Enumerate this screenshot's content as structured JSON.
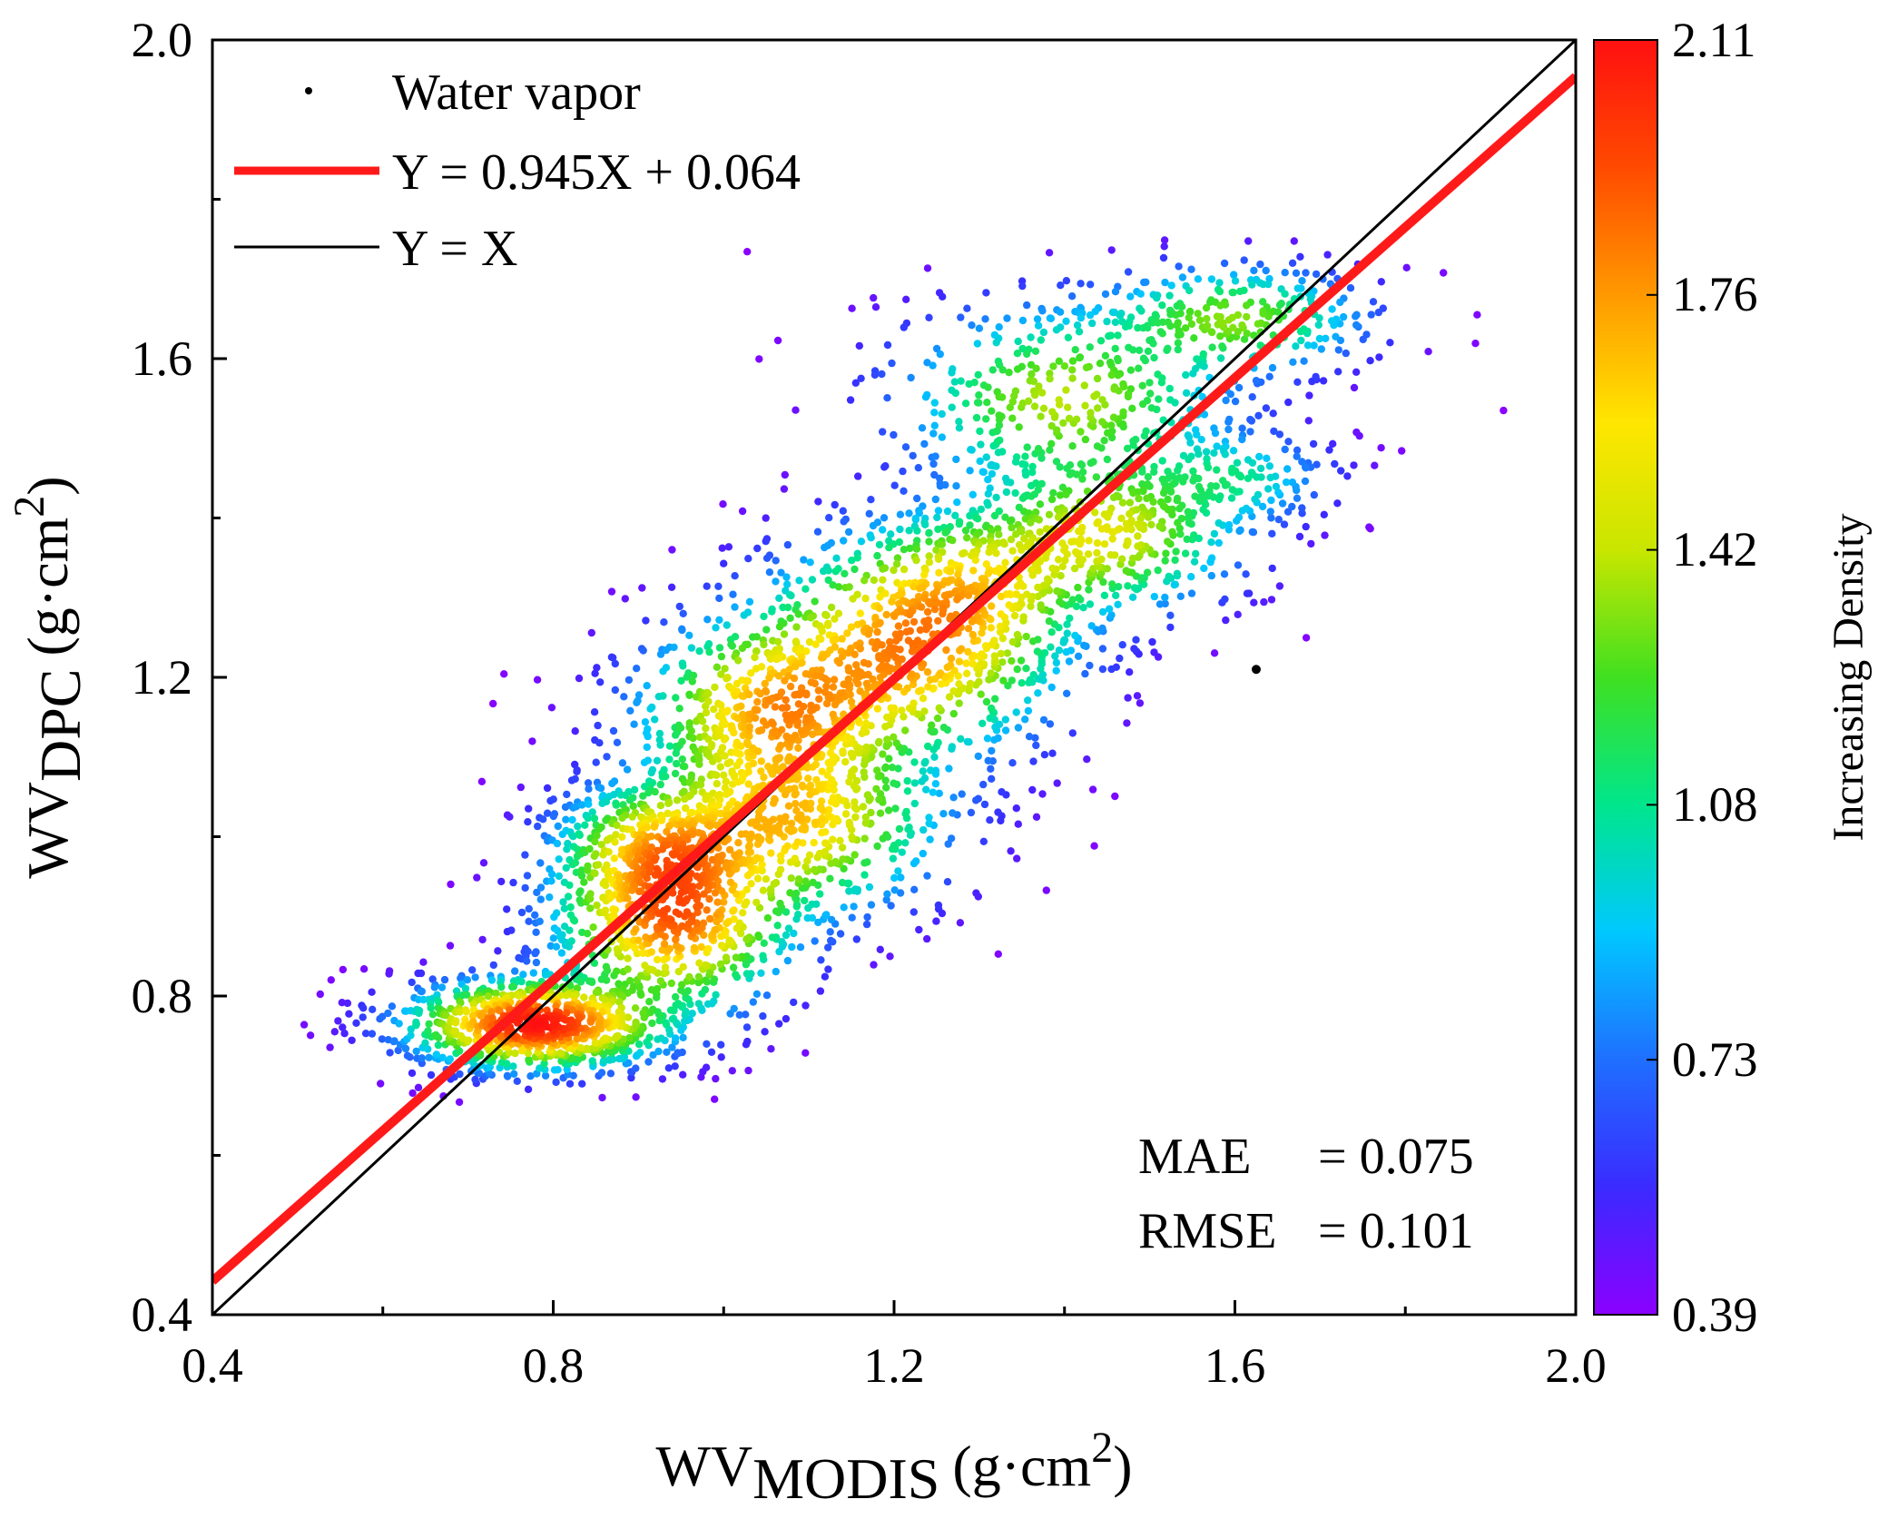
{
  "chart_data": {
    "type": "scatter",
    "title": "",
    "xlabel": {
      "main": "WV",
      "sub": "MODIS",
      "unit": "(g·cm",
      "sup": "2",
      "close": ")"
    },
    "ylabel": {
      "main": "WV",
      "sub": "DPC",
      "unit": "(g·cm",
      "sup": "2",
      "close": ")"
    },
    "xlim": [
      0.4,
      2.0
    ],
    "ylim": [
      0.4,
      2.0
    ],
    "xticks": [
      "0.4",
      "0.8",
      "1.2",
      "1.6",
      "2.0"
    ],
    "yticks": [
      "0.4",
      "0.8",
      "1.2",
      "1.6",
      "2.0"
    ],
    "legend": {
      "position": "top-left",
      "entries": [
        {
          "label": "Water vapor",
          "marker": "dot"
        },
        {
          "label": "Y = 0.945X + 0.064",
          "marker": "line",
          "color": "#ff1a1a"
        },
        {
          "label": "Y = X",
          "marker": "line",
          "color": "#000000"
        }
      ]
    },
    "fit_line": {
      "slope": 0.945,
      "intercept": 0.064,
      "color": "#ff1a1a"
    },
    "identity_line": {
      "slope": 1.0,
      "intercept": 0.0,
      "color": "#000000"
    },
    "stats": {
      "mae_label": "MAE",
      "mae_eq": "= 0.075",
      "rmse_label": "RMSE",
      "rmse_eq": "= 0.101"
    },
    "density_clusters": [
      {
        "x": 0.78,
        "y": 0.765,
        "sx": 0.075,
        "sy": 0.028,
        "n": 900
      },
      {
        "x": 0.94,
        "y": 0.9,
        "sx": 0.07,
        "sy": 0.06,
        "n": 700
      },
      {
        "x": 0.92,
        "y": 0.99,
        "sx": 0.06,
        "sy": 0.04,
        "n": 350
      },
      {
        "x": 1.08,
        "y": 1.02,
        "sx": 0.09,
        "sy": 0.06,
        "n": 500
      },
      {
        "x": 1.06,
        "y": 1.16,
        "sx": 0.08,
        "sy": 0.06,
        "n": 550
      },
      {
        "x": 1.22,
        "y": 1.24,
        "sx": 0.09,
        "sy": 0.07,
        "n": 600
      },
      {
        "x": 1.3,
        "y": 1.32,
        "sx": 0.07,
        "sy": 0.05,
        "n": 300
      },
      {
        "x": 1.45,
        "y": 1.38,
        "sx": 0.08,
        "sy": 0.05,
        "n": 400
      },
      {
        "x": 1.4,
        "y": 1.55,
        "sx": 0.1,
        "sy": 0.06,
        "n": 350
      },
      {
        "x": 1.6,
        "y": 1.65,
        "sx": 0.08,
        "sy": 0.035,
        "n": 300
      },
      {
        "x": 1.6,
        "y": 1.45,
        "sx": 0.06,
        "sy": 0.03,
        "n": 150
      }
    ],
    "outlier_point": {
      "x": 1.625,
      "y": 1.21
    },
    "colorbar": {
      "label": "Increasing Density",
      "ticks": [
        "2.11",
        "1.76",
        "1.42",
        "1.08",
        "0.73",
        "0.39"
      ],
      "range": [
        0.39,
        2.11
      ],
      "colors": [
        "#8b00ff",
        "#3a2bff",
        "#1f6fff",
        "#00c8ff",
        "#00e68c",
        "#40e020",
        "#c8e600",
        "#ffe600",
        "#ff9900",
        "#ff4a00",
        "#ff1010"
      ]
    }
  }
}
